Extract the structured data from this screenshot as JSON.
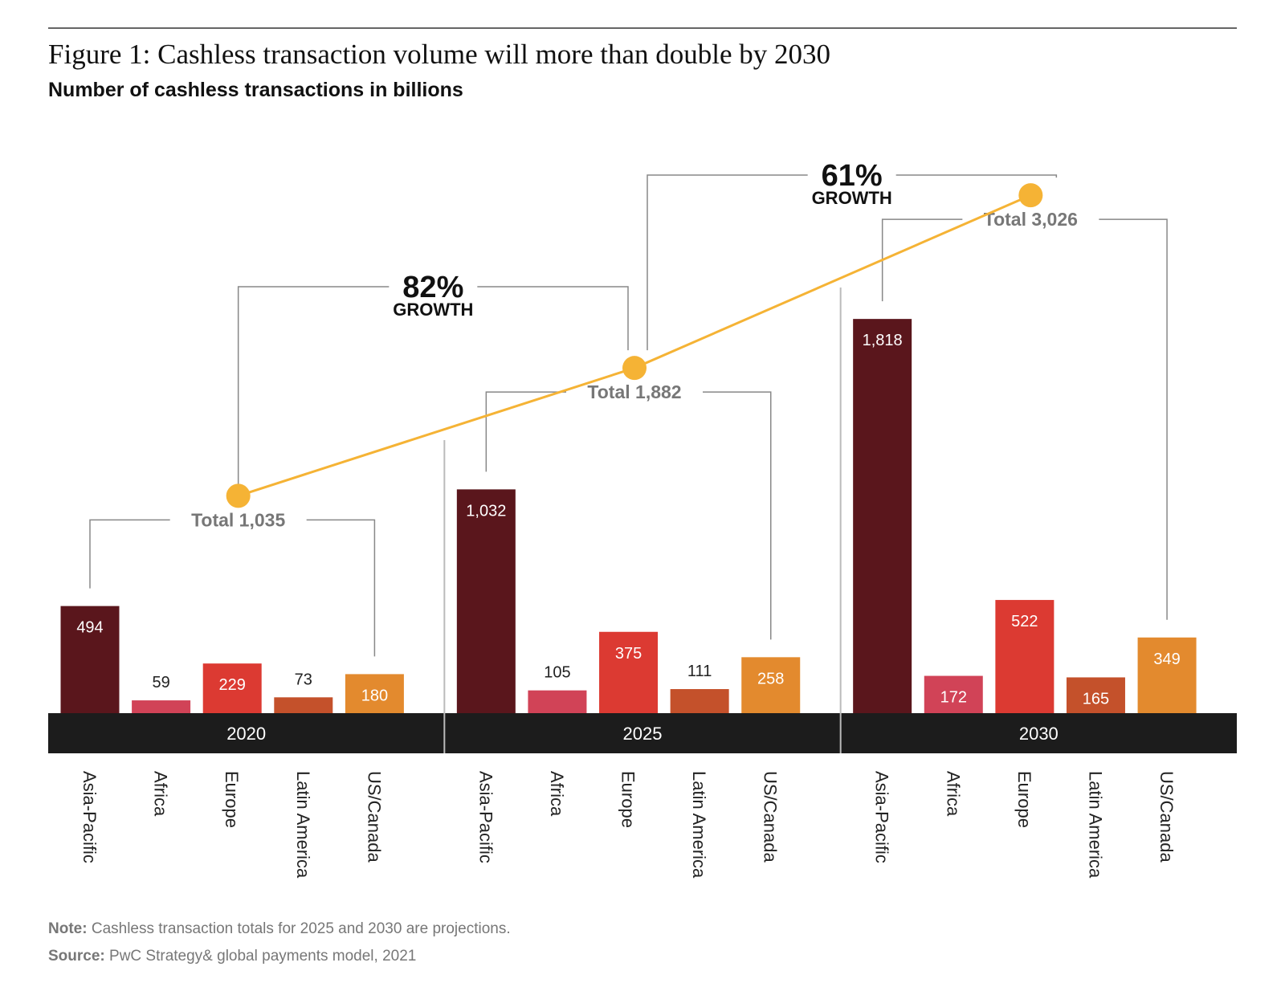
{
  "title": "Figure 1: Cashless transaction volume will more than double by 2030",
  "chart_data": {
    "type": "grouped-bar",
    "subtitle": "Number of cashless transactions in billions",
    "categories": [
      "Asia-Pacific",
      "Africa",
      "Europe",
      "Latin America",
      "US/Canada"
    ],
    "colors": [
      "#5a161c",
      "#d14357",
      "#dc3a32",
      "#c4512b",
      "#e38a2e"
    ],
    "series": [
      {
        "name": "2020",
        "values": [
          494,
          59,
          229,
          73,
          180
        ],
        "value_labels": [
          "494",
          "59",
          "229",
          "73",
          "180"
        ]
      },
      {
        "name": "2025",
        "values": [
          1032,
          105,
          375,
          111,
          258
        ],
        "value_labels": [
          "1,032",
          "105",
          "375",
          "111",
          "258"
        ]
      },
      {
        "name": "2030",
        "values": [
          1818,
          172,
          522,
          165,
          349
        ],
        "value_labels": [
          "1,818",
          "172",
          "522",
          "165",
          "349"
        ]
      }
    ],
    "totals": {
      "values": [
        1035,
        1882,
        3026
      ],
      "labels": [
        "Total 1,035",
        "Total 1,882",
        "Total 3,026"
      ],
      "color": "#f5b335"
    },
    "annotations": [
      {
        "text": "82%",
        "caption": "GROWTH"
      },
      {
        "text": "61%",
        "caption": "GROWTH"
      }
    ]
  },
  "note": {
    "label": "Note:",
    "text": "Cashless transaction totals for 2025 and 2030 are projections."
  },
  "source": {
    "label": "Source:",
    "text": "PwC Strategy& global payments model, 2021"
  }
}
